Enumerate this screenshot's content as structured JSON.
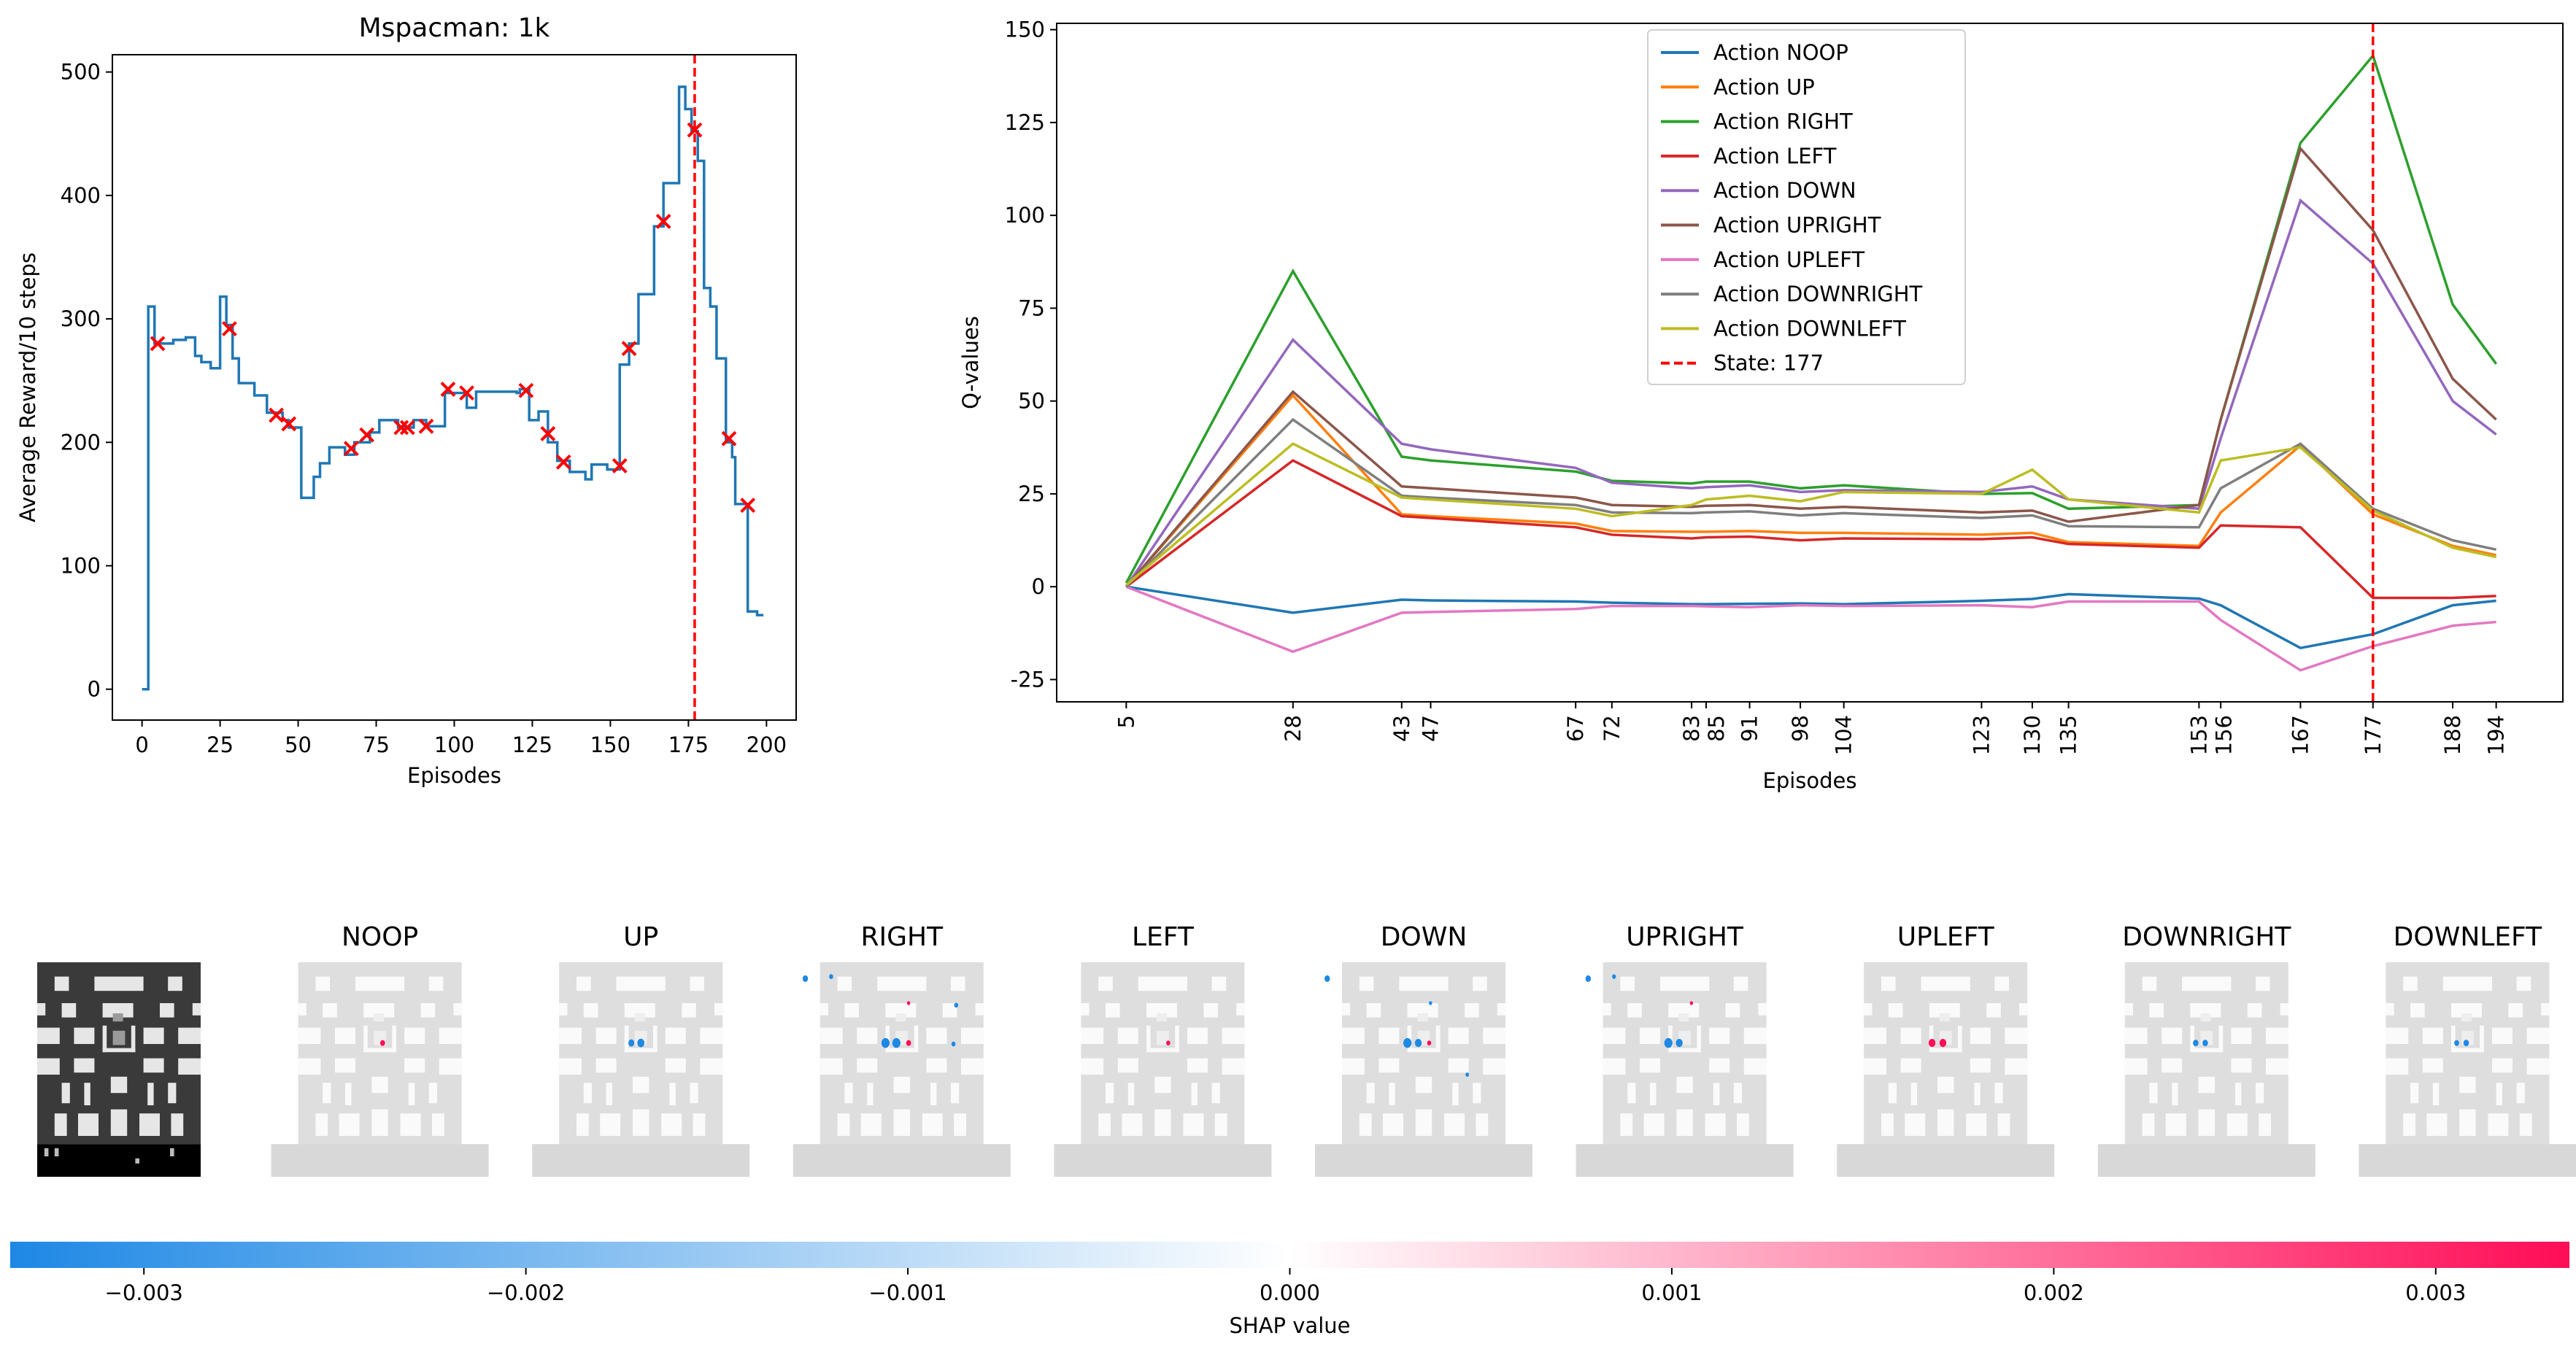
{
  "chart_data": [
    {
      "type": "line",
      "title": "Mspacman: 1k",
      "xlabel": "Episodes",
      "ylabel": "Average Reward/10 steps",
      "xlim": [
        -9.5,
        209.5
      ],
      "ylim": [
        -25,
        514
      ],
      "xticks": [
        0,
        25,
        50,
        75,
        100,
        125,
        150,
        175,
        200
      ],
      "yticks": [
        0,
        100,
        200,
        300,
        400,
        500
      ],
      "grid": false,
      "line_color": "#1f77b4",
      "step_series": [
        [
          0,
          0
        ],
        [
          2,
          310
        ],
        [
          4,
          280
        ],
        [
          10,
          283
        ],
        [
          14,
          285
        ],
        [
          17,
          270
        ],
        [
          19,
          265
        ],
        [
          22,
          260
        ],
        [
          25,
          318
        ],
        [
          27,
          295
        ],
        [
          29,
          268
        ],
        [
          31,
          248
        ],
        [
          36,
          238
        ],
        [
          40,
          224
        ],
        [
          45,
          218
        ],
        [
          47,
          212
        ],
        [
          51,
          155
        ],
        [
          55,
          172
        ],
        [
          57,
          183
        ],
        [
          60,
          196
        ],
        [
          65,
          190
        ],
        [
          68,
          200
        ],
        [
          73,
          208
        ],
        [
          76,
          218
        ],
        [
          82,
          212
        ],
        [
          87,
          218
        ],
        [
          91,
          213
        ],
        [
          97,
          240
        ],
        [
          104,
          228
        ],
        [
          107,
          241
        ],
        [
          120,
          240
        ],
        [
          121,
          243
        ],
        [
          124,
          218
        ],
        [
          127,
          225
        ],
        [
          130,
          200
        ],
        [
          133,
          185
        ],
        [
          137,
          176
        ],
        [
          142,
          170
        ],
        [
          144,
          182
        ],
        [
          149,
          178
        ],
        [
          153,
          263
        ],
        [
          156,
          280
        ],
        [
          159,
          320
        ],
        [
          164,
          375
        ],
        [
          167,
          410
        ],
        [
          172,
          488
        ],
        [
          174,
          470
        ],
        [
          176,
          452
        ],
        [
          178,
          428
        ],
        [
          180,
          325
        ],
        [
          182,
          310
        ],
        [
          184,
          268
        ],
        [
          187,
          200
        ],
        [
          189,
          188
        ],
        [
          190,
          150
        ],
        [
          194,
          63
        ],
        [
          197,
          60
        ],
        [
          199,
          60
        ]
      ],
      "markers": {
        "color": "#ff0000",
        "x": [
          5,
          28,
          43,
          47,
          67,
          72,
          83,
          85,
          91,
          98,
          104,
          123,
          130,
          135,
          153,
          156,
          167,
          177,
          188,
          194
        ],
        "y": [
          280,
          292,
          222,
          215,
          195,
          206,
          212,
          212,
          213,
          243,
          240,
          242,
          207,
          184,
          181,
          276,
          379,
          453,
          203,
          149
        ]
      },
      "vline": {
        "x": 177,
        "color": "#ff0000",
        "style": "dashed"
      }
    },
    {
      "type": "line",
      "title": "",
      "xlabel": "Episodes",
      "ylabel": "Q-values",
      "xlim": [
        -4.6,
        203.2
      ],
      "ylim": [
        -31,
        151.7
      ],
      "yticks": [
        -25,
        0,
        25,
        50,
        75,
        100,
        125,
        150
      ],
      "x": [
        5,
        28,
        43,
        47,
        67,
        72,
        83,
        85,
        91,
        98,
        104,
        123,
        130,
        135,
        153,
        156,
        167,
        177,
        188,
        194
      ],
      "grid": false,
      "legend": "top-center",
      "series": [
        {
          "name": "Action NOOP",
          "color": "#1f77b4",
          "values": [
            0,
            -7,
            -3.5,
            -3.7,
            -4,
            -4.3,
            -4.7,
            -4.7,
            -4.6,
            -4.5,
            -4.7,
            -3.8,
            -3.3,
            -2,
            -3.2,
            -5,
            -16.5,
            -12.8,
            -5,
            -3.8
          ]
        },
        {
          "name": "Action UP",
          "color": "#ff7f0e",
          "values": [
            0,
            51.5,
            19.5,
            19,
            17,
            15,
            14.8,
            14.8,
            15,
            14.5,
            14.5,
            14,
            14.5,
            12,
            11,
            20,
            38,
            19.5,
            11,
            8.5
          ]
        },
        {
          "name": "Action RIGHT",
          "color": "#2ca02c",
          "values": [
            1,
            85,
            35,
            34,
            31,
            28.5,
            27.8,
            28.3,
            28.3,
            26.5,
            27.3,
            25,
            25.2,
            21,
            22,
            45,
            119.5,
            143,
            76,
            60
          ]
        },
        {
          "name": "Action LEFT",
          "color": "#d62728",
          "values": [
            0,
            34,
            19,
            18.5,
            16,
            14,
            13,
            13.3,
            13.5,
            12.5,
            13,
            12.8,
            13.3,
            11.5,
            10.5,
            16.5,
            16,
            -3,
            -3,
            -2.5
          ]
        },
        {
          "name": "Action DOWN",
          "color": "#9467bd",
          "values": [
            0,
            66.5,
            38.5,
            37,
            32,
            28,
            26.5,
            26.8,
            27.3,
            25.5,
            26,
            25.5,
            27,
            23.5,
            21,
            40,
            104,
            87,
            50,
            41
          ]
        },
        {
          "name": "Action UPRIGHT",
          "color": "#8c564b",
          "values": [
            0,
            52.5,
            27,
            26.5,
            24,
            22,
            21.5,
            21.8,
            22,
            21,
            21.5,
            20,
            20.5,
            17.5,
            22,
            45,
            118,
            96,
            56,
            45
          ]
        },
        {
          "name": "Action UPLEFT",
          "color": "#e377c2",
          "values": [
            0,
            -17.5,
            -7,
            -6.8,
            -6,
            -5.2,
            -5.2,
            -5.3,
            -5.5,
            -5,
            -5.2,
            -5,
            -5.5,
            -4,
            -4,
            -9,
            -22.5,
            -16,
            -10.5,
            -9.5
          ]
        },
        {
          "name": "Action DOWNRIGHT",
          "color": "#7f7f7f",
          "values": [
            0,
            45,
            24.5,
            24,
            22,
            20,
            19.8,
            20,
            20.3,
            19.2,
            19.8,
            18.5,
            19.2,
            16.3,
            16,
            26.5,
            38.5,
            21,
            12.5,
            10
          ]
        },
        {
          "name": "Action DOWNLEFT",
          "color": "#bcbd22",
          "values": [
            0.5,
            38.5,
            24,
            23.5,
            21,
            19,
            22,
            23.5,
            24.5,
            23,
            25.5,
            25,
            31.5,
            23.5,
            20,
            34,
            37.5,
            20.5,
            10.5,
            8
          ]
        }
      ],
      "vline": {
        "name": "State: 177",
        "x": 177,
        "color": "#ff0000",
        "style": "dashed"
      }
    }
  ],
  "shap": {
    "panel_titles": [
      "",
      "NOOP",
      "UP",
      "RIGHT",
      "LEFT",
      "DOWN",
      "UPRIGHT",
      "UPLEFT",
      "DOWNRIGHT",
      "DOWNLEFT"
    ],
    "colorbar": {
      "label": "SHAP value",
      "range": [
        -0.00335,
        0.00335
      ],
      "ticks": [
        "−0.003",
        "−0.002",
        "−0.001",
        "0.000",
        "0.001",
        "0.002",
        "0.003"
      ],
      "tick_values": [
        -0.003,
        -0.002,
        -0.001,
        0,
        0.001,
        0.002,
        0.003
      ],
      "color_negative": "#1e88e5",
      "color_zero": "#ffffff",
      "color_positive": "#ff0d57"
    }
  }
}
